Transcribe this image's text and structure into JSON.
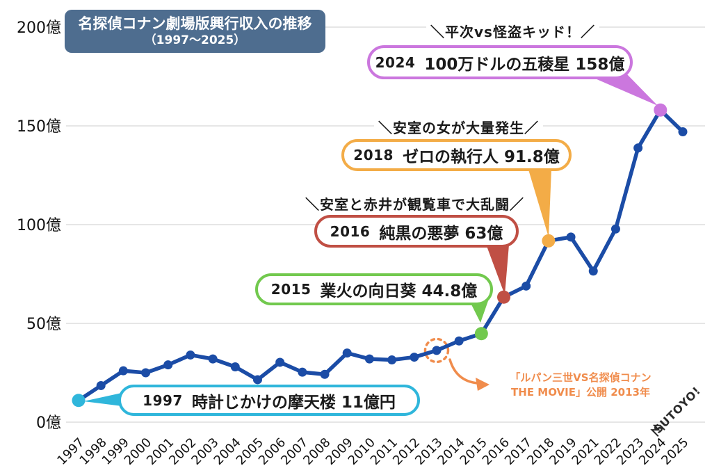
{
  "title_box": {
    "line1": "名探偵コナン劇場版興行収入の推移",
    "line2": "（1997〜2025）"
  },
  "chart_data": {
    "type": "line",
    "title": "名探偵コナン劇場版興行収入の推移（1997〜2025）",
    "x": [
      "1997",
      "1998",
      "1999",
      "2000",
      "2001",
      "2002",
      "2003",
      "2004",
      "2005",
      "2006",
      "2007",
      "2008",
      "2009",
      "2010",
      "2011",
      "2012",
      "2013",
      "2014",
      "2015",
      "2016",
      "2017",
      "2018",
      "2019",
      "2021",
      "2022",
      "2023",
      "2024",
      "2025"
    ],
    "values": [
      11,
      18.5,
      26,
      25,
      29,
      34,
      32,
      28,
      21.5,
      30.3,
      25.3,
      24.2,
      35,
      32,
      31.5,
      32.9,
      36.3,
      41.1,
      44.8,
      63.3,
      68.9,
      91.8,
      93.7,
      76.5,
      97.8,
      138.8,
      158,
      147
    ],
    "unit": "億円",
    "yticks": [
      0,
      50,
      100,
      150,
      200
    ],
    "ytick_labels": [
      "0億",
      "50億",
      "100億",
      "150億",
      "200億"
    ],
    "ylim": [
      0,
      210
    ],
    "grid": true,
    "legend": "none",
    "line_color": "#1b4ca6",
    "grid_color": "#d8d8d8",
    "highlights": [
      {
        "year": "1997",
        "color": "#2fb6db",
        "value": 11
      },
      {
        "year": "2015",
        "color": "#72c94e",
        "value": 44.8
      },
      {
        "year": "2016",
        "color": "#c04f44",
        "value": 63.3
      },
      {
        "year": "2018",
        "color": "#f3ac47",
        "value": 91.8
      },
      {
        "year": "2024",
        "color": "#cb77de",
        "value": 158
      }
    ]
  },
  "callouts": [
    {
      "year": "1997",
      "label": "時計じかけの摩天楼 11億円",
      "color": "#2fb6db"
    },
    {
      "year": "2015",
      "label": "業火の向日葵 44.8億",
      "color": "#72c94e"
    },
    {
      "year": "2016",
      "label": "純黒の悪夢 63億",
      "color": "#c04f44"
    },
    {
      "year": "2018",
      "label": "ゼロの執行人 91.8億",
      "color": "#f3ac47"
    },
    {
      "year": "2024",
      "label": "100万ドルの五稜星 158億",
      "color": "#cb77de"
    }
  ],
  "shouts": [
    {
      "text": "＼平次vs怪盗キッド！／"
    },
    {
      "text": "＼安室の女が大量発生／"
    },
    {
      "text": "＼安室と赤井が観覧車で大乱闘／"
    }
  ],
  "note": {
    "line1": "「ルパン三世VS名探偵コナン",
    "line2": "THE MOVIE」公開 2013年",
    "ring_year": "2013",
    "color": "#f08c4c"
  },
  "logo_text": "SUTOYO!"
}
